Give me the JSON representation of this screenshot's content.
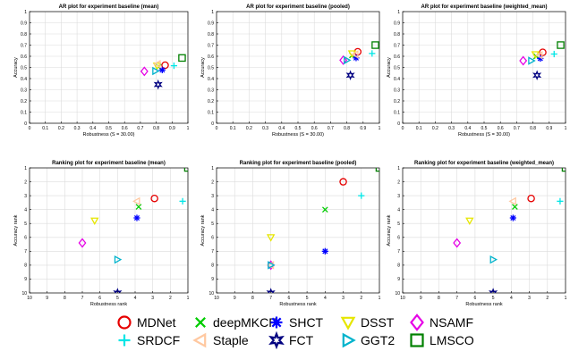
{
  "chart_data": [
    {
      "type": "scatter",
      "title": "AR plot for experiment baseline (mean)",
      "xlabel": "Robustness (S = 30.00)",
      "ylabel": "Accuracy",
      "xlim": [
        0,
        1
      ],
      "ylim": [
        0,
        1
      ],
      "xticks": [
        "0",
        "0.1",
        "0.2",
        "0.3",
        "0.4",
        "0.5",
        "0.6",
        "0.7",
        "0.8",
        "0.9",
        "1"
      ],
      "yticks": [
        "0",
        "0.1",
        "0.2",
        "0.3",
        "0.4",
        "0.5",
        "0.6",
        "0.7",
        "0.8",
        "0.9",
        "1"
      ],
      "grid": true,
      "points": [
        {
          "tracker": "MDNet",
          "x": 0.856,
          "y": 0.52
        },
        {
          "tracker": "deepMKCF",
          "x": 0.815,
          "y": 0.505
        },
        {
          "tracker": "SHCT",
          "x": 0.838,
          "y": 0.477
        },
        {
          "tracker": "DSST",
          "x": 0.805,
          "y": 0.515
        },
        {
          "tracker": "NSAMF",
          "x": 0.725,
          "y": 0.465
        },
        {
          "tracker": "SRDCF",
          "x": 0.912,
          "y": 0.515
        },
        {
          "tracker": "Staple",
          "x": 0.808,
          "y": 0.53
        },
        {
          "tracker": "FCT",
          "x": 0.812,
          "y": 0.347
        },
        {
          "tracker": "GGT2",
          "x": 0.795,
          "y": 0.468
        },
        {
          "tracker": "LMSCO",
          "x": 0.963,
          "y": 0.585
        }
      ]
    },
    {
      "type": "scatter",
      "title": "AR plot for experiment baseline (pooled)",
      "xlabel": "Robustness (S = 30.00)",
      "ylabel": "Accuracy",
      "xlim": [
        0,
        1
      ],
      "ylim": [
        0,
        1
      ],
      "xticks": [
        "0",
        "0.1",
        "0.2",
        "0.3",
        "0.4",
        "0.5",
        "0.6",
        "0.7",
        "0.8",
        "0.9",
        "1"
      ],
      "yticks": [
        "0",
        "0.1",
        "0.2",
        "0.3",
        "0.4",
        "0.5",
        "0.6",
        "0.7",
        "0.8",
        "0.9",
        "1"
      ],
      "grid": true,
      "points": [
        {
          "tracker": "MDNet",
          "x": 0.867,
          "y": 0.64
        },
        {
          "tracker": "deepMKCF",
          "x": 0.832,
          "y": 0.608
        },
        {
          "tracker": "SHCT",
          "x": 0.857,
          "y": 0.585
        },
        {
          "tracker": "DSST",
          "x": 0.832,
          "y": 0.625
        },
        {
          "tracker": "NSAMF",
          "x": 0.778,
          "y": 0.565
        },
        {
          "tracker": "SRDCF",
          "x": 0.955,
          "y": 0.625
        },
        {
          "tracker": "Staple",
          "x": 0.852,
          "y": 0.617
        },
        {
          "tracker": "FCT",
          "x": 0.822,
          "y": 0.43
        },
        {
          "tracker": "GGT2",
          "x": 0.8,
          "y": 0.565
        },
        {
          "tracker": "LMSCO",
          "x": 0.975,
          "y": 0.7
        }
      ]
    },
    {
      "type": "scatter",
      "title": "AR plot for experiment baseline (weighted_mean)",
      "xlabel": "Robustness (S = 30.00)",
      "ylabel": "Accuracy",
      "xlim": [
        0,
        1
      ],
      "ylim": [
        0,
        1
      ],
      "xticks": [
        "0",
        "0.1",
        "0.2",
        "0.3",
        "0.4",
        "0.5",
        "0.6",
        "0.7",
        "0.8",
        "0.9",
        "1"
      ],
      "yticks": [
        "0",
        "0.1",
        "0.2",
        "0.3",
        "0.4",
        "0.5",
        "0.6",
        "0.7",
        "0.8",
        "0.9",
        "1"
      ],
      "grid": true,
      "points": [
        {
          "tracker": "MDNet",
          "x": 0.86,
          "y": 0.635
        },
        {
          "tracker": "deepMKCF",
          "x": 0.82,
          "y": 0.6
        },
        {
          "tracker": "SHCT",
          "x": 0.845,
          "y": 0.58
        },
        {
          "tracker": "DSST",
          "x": 0.815,
          "y": 0.617
        },
        {
          "tracker": "NSAMF",
          "x": 0.74,
          "y": 0.56
        },
        {
          "tracker": "SRDCF",
          "x": 0.93,
          "y": 0.62
        },
        {
          "tracker": "Staple",
          "x": 0.84,
          "y": 0.61
        },
        {
          "tracker": "FCT",
          "x": 0.825,
          "y": 0.43
        },
        {
          "tracker": "GGT2",
          "x": 0.79,
          "y": 0.56
        },
        {
          "tracker": "LMSCO",
          "x": 0.97,
          "y": 0.7
        }
      ]
    },
    {
      "type": "scatter",
      "title": "Ranking plot for experiment baseline (mean)",
      "xlabel": "Robustness rank",
      "ylabel": "Accuracy rank",
      "xlim": [
        10,
        1
      ],
      "ylim": [
        10,
        1
      ],
      "xticks": [
        "10",
        "9",
        "8",
        "7",
        "6",
        "5",
        "4",
        "3",
        "2",
        "1"
      ],
      "yticks": [
        "1",
        "2",
        "3",
        "4",
        "5",
        "6",
        "7",
        "8",
        "9",
        "10"
      ],
      "grid": true,
      "points": [
        {
          "tracker": "MDNet",
          "x": 2.9,
          "y": 3.2
        },
        {
          "tracker": "deepMKCF",
          "x": 3.8,
          "y": 3.8
        },
        {
          "tracker": "SHCT",
          "x": 3.9,
          "y": 4.6
        },
        {
          "tracker": "DSST",
          "x": 6.3,
          "y": 4.8
        },
        {
          "tracker": "NSAMF",
          "x": 7.0,
          "y": 6.4
        },
        {
          "tracker": "SRDCF",
          "x": 1.3,
          "y": 3.4
        },
        {
          "tracker": "Staple",
          "x": 3.9,
          "y": 3.4
        },
        {
          "tracker": "FCT",
          "x": 5.0,
          "y": 10.0
        },
        {
          "tracker": "GGT2",
          "x": 5.0,
          "y": 7.6
        },
        {
          "tracker": "LMSCO",
          "x": 1.0,
          "y": 1.0
        }
      ]
    },
    {
      "type": "scatter",
      "title": "Ranking plot for experiment baseline (pooled)",
      "xlabel": "Robustness rank",
      "ylabel": "Accuracy rank",
      "xlim": [
        10,
        1
      ],
      "ylim": [
        10,
        1
      ],
      "xticks": [
        "10",
        "9",
        "8",
        "7",
        "6",
        "5",
        "4",
        "3",
        "2",
        "1"
      ],
      "yticks": [
        "1",
        "2",
        "3",
        "4",
        "5",
        "6",
        "7",
        "8",
        "9",
        "10"
      ],
      "grid": true,
      "points": [
        {
          "tracker": "MDNet",
          "x": 3.0,
          "y": 2.0
        },
        {
          "tracker": "deepMKCF",
          "x": 4.0,
          "y": 4.0
        },
        {
          "tracker": "SHCT",
          "x": 4.0,
          "y": 7.0
        },
        {
          "tracker": "DSST",
          "x": 7.0,
          "y": 6.0
        },
        {
          "tracker": "NSAMF",
          "x": 7.0,
          "y": 8.0
        },
        {
          "tracker": "SRDCF",
          "x": 2.0,
          "y": 3.0
        },
        {
          "tracker": "Staple",
          "x": 7.0,
          "y": 8.0
        },
        {
          "tracker": "FCT",
          "x": 7.0,
          "y": 10.0
        },
        {
          "tracker": "GGT2",
          "x": 7.0,
          "y": 8.0
        },
        {
          "tracker": "LMSCO",
          "x": 1.0,
          "y": 1.0
        }
      ]
    },
    {
      "type": "scatter",
      "title": "Ranking plot for experiment baseline (weighted_mean)",
      "xlabel": "Robustness rank",
      "ylabel": "Accuracy rank",
      "xlim": [
        10,
        1
      ],
      "ylim": [
        10,
        1
      ],
      "xticks": [
        "10",
        "9",
        "8",
        "7",
        "6",
        "5",
        "4",
        "3",
        "2",
        "1"
      ],
      "yticks": [
        "1",
        "2",
        "3",
        "4",
        "5",
        "6",
        "7",
        "8",
        "9",
        "10"
      ],
      "grid": true,
      "points": [
        {
          "tracker": "MDNet",
          "x": 2.9,
          "y": 3.2
        },
        {
          "tracker": "deepMKCF",
          "x": 3.8,
          "y": 3.8
        },
        {
          "tracker": "SHCT",
          "x": 3.9,
          "y": 4.6
        },
        {
          "tracker": "DSST",
          "x": 6.3,
          "y": 4.8
        },
        {
          "tracker": "NSAMF",
          "x": 7.0,
          "y": 6.4
        },
        {
          "tracker": "SRDCF",
          "x": 1.3,
          "y": 3.4
        },
        {
          "tracker": "Staple",
          "x": 3.9,
          "y": 3.4
        },
        {
          "tracker": "FCT",
          "x": 5.0,
          "y": 10.0
        },
        {
          "tracker": "GGT2",
          "x": 5.0,
          "y": 7.6
        },
        {
          "tracker": "LMSCO",
          "x": 1.0,
          "y": 1.0
        }
      ]
    }
  ],
  "legend": {
    "placement": "bottom",
    "items": [
      {
        "name": "MDNet",
        "marker": "circle",
        "color": "#e60000"
      },
      {
        "name": "deepMKCF",
        "marker": "x",
        "color": "#00cc00"
      },
      {
        "name": "SHCT",
        "marker": "asterisk",
        "color": "#0000ff"
      },
      {
        "name": "DSST",
        "marker": "triangle-down",
        "color": "#e6e600"
      },
      {
        "name": "NSAMF",
        "marker": "diamond",
        "color": "#e600e6"
      },
      {
        "name": "SRDCF",
        "marker": "plus",
        "color": "#00e6e6"
      },
      {
        "name": "Staple",
        "marker": "triangle-left",
        "color": "#ffc8a0"
      },
      {
        "name": "FCT",
        "marker": "hexagram",
        "color": "#000080"
      },
      {
        "name": "GGT2",
        "marker": "triangle-right",
        "color": "#00b3cc"
      },
      {
        "name": "LMSCO",
        "marker": "square",
        "color": "#008000"
      }
    ]
  }
}
